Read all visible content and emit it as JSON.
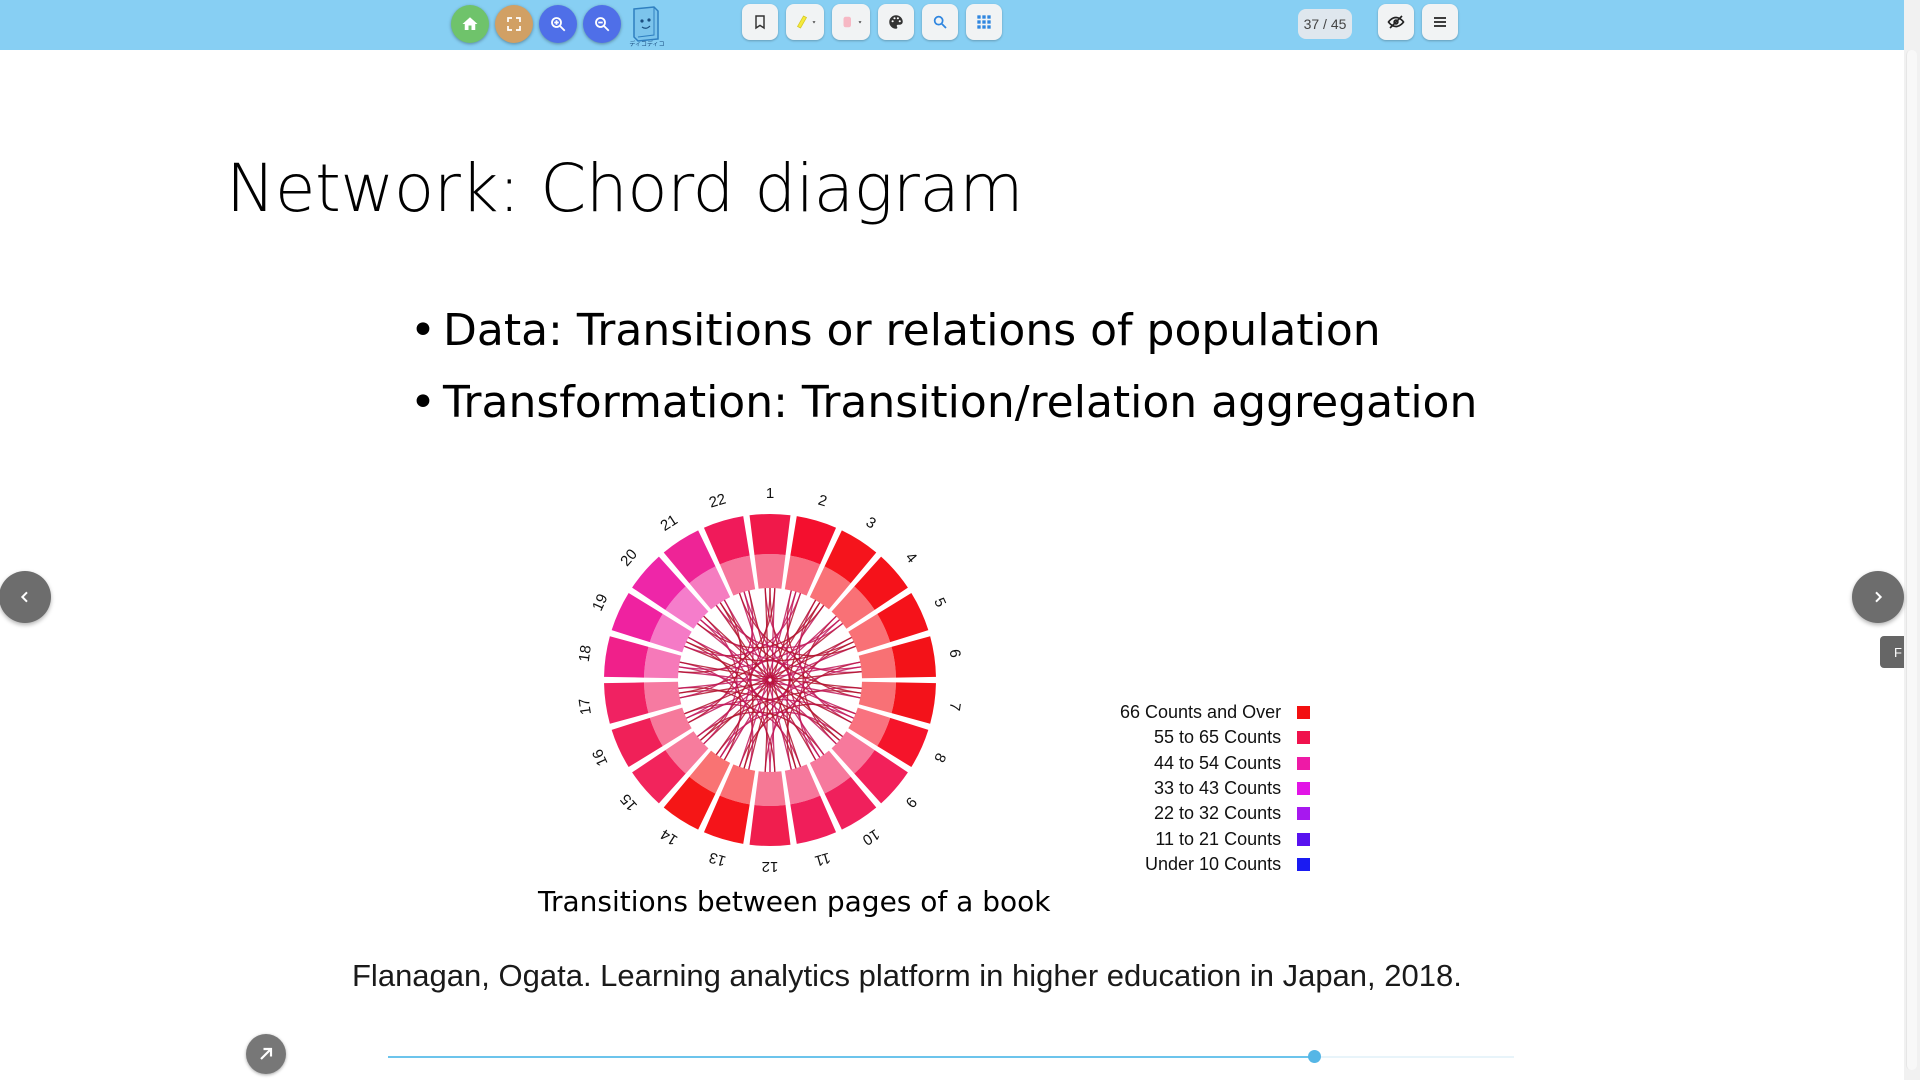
{
  "toolbar": {
    "page_indicator": "37 / 45",
    "logo_text": "ディコディコ",
    "buttons": [
      {
        "name": "home-button",
        "icon": "home-icon",
        "color": "#6fc36b"
      },
      {
        "name": "fullscreen-button",
        "icon": "fullscreen-icon",
        "color": "#d1a064"
      },
      {
        "name": "zoom-in-button",
        "icon": "zoom-in-icon",
        "color": "#4f6fe8"
      },
      {
        "name": "zoom-out-button",
        "icon": "zoom-out-icon",
        "color": "#4f6fe8"
      }
    ],
    "tools": [
      "bookmark-icon",
      "highlighter-icon",
      "pen-icon",
      "palette-icon",
      "search-icon",
      "grid-icon"
    ],
    "right_tools": [
      "hide-icon",
      "menu-icon"
    ]
  },
  "slide": {
    "title": "Network: Chord diagram",
    "bullets": [
      "Data: Transitions or relations of population",
      "Transformation: Transition/relation aggregation"
    ],
    "figure_caption": "Transitions between pages of a book",
    "citation": "Flanagan, Ogata. Learning analytics platform in higher education in Japan, 2018."
  },
  "chord": {
    "segment_labels": [
      "1",
      "2",
      "3",
      "4",
      "5",
      "6",
      "7",
      "8",
      "9",
      "10",
      "11",
      "12",
      "13",
      "14",
      "15",
      "16",
      "17",
      "18",
      "19",
      "20",
      "21",
      "22"
    ],
    "segment_colors": [
      "#f0194a",
      "#f40f2e",
      "#f5141c",
      "#f5121a",
      "#f5121a",
      "#f31218",
      "#f3121a",
      "#f5142a",
      "#f2205a",
      "#f0205c",
      "#f01e5a",
      "#f01e4e",
      "#f5141a",
      "#f51616",
      "#f2245c",
      "#f02058",
      "#f02262",
      "#f0208a",
      "#ef22a0",
      "#ee26a8",
      "#ee2496",
      "#f01a5a"
    ],
    "legend": [
      {
        "label": "66 Counts and Over",
        "color": "#f30f10"
      },
      {
        "label": "55 to 65 Counts",
        "color": "#f0124d"
      },
      {
        "label": "44 to 54 Counts",
        "color": "#ee1aa6"
      },
      {
        "label": "33 to 43 Counts",
        "color": "#e214e6"
      },
      {
        "label": "22 to 32 Counts",
        "color": "#a718ef"
      },
      {
        "label": "11 to 21 Counts",
        "color": "#5812ef"
      },
      {
        "label": "Under 10 Counts",
        "color": "#1a1bf2"
      }
    ]
  },
  "progress": {
    "current": 37,
    "total": 45,
    "fraction": 0.822
  }
}
